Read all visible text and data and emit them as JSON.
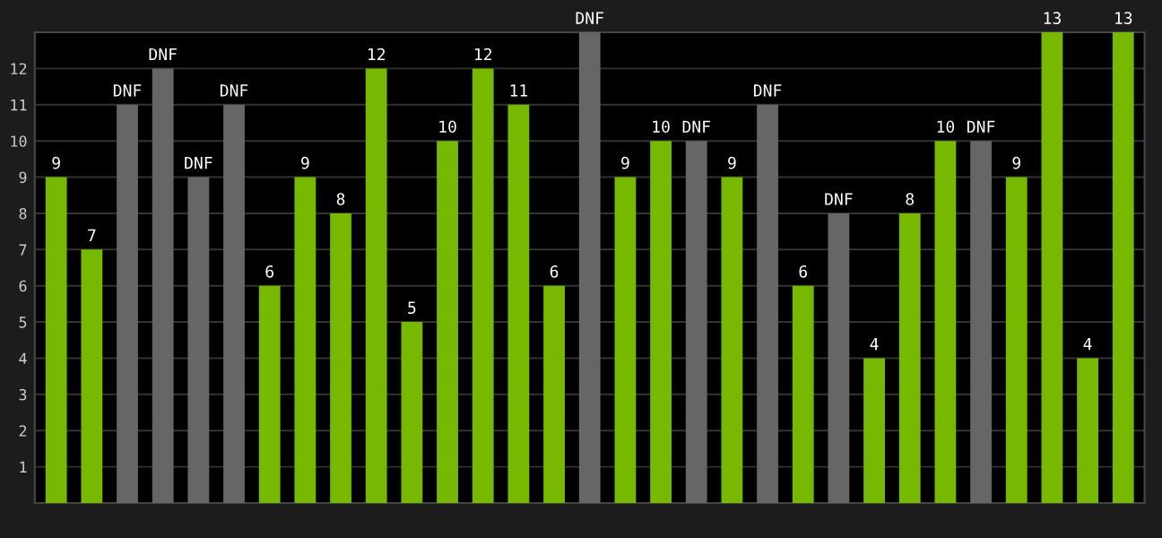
{
  "chart_data": {
    "type": "bar",
    "categories": [
      null,
      null,
      null,
      null,
      null,
      null,
      null,
      null,
      null,
      null,
      null,
      null,
      null,
      null,
      null,
      null,
      null,
      null,
      null,
      null,
      null,
      null,
      null,
      null,
      null,
      null,
      null,
      null,
      null,
      null,
      null
    ],
    "values": [
      9,
      7,
      11,
      12,
      9,
      11,
      6,
      9,
      8,
      12,
      5,
      10,
      12,
      11,
      6,
      13,
      9,
      10,
      10,
      9,
      11,
      6,
      8,
      4,
      8,
      10,
      10,
      9,
      13,
      4,
      13
    ],
    "value_labels": [
      "9",
      "7",
      "DNF",
      "DNF",
      "DNF",
      "DNF",
      "6",
      "9",
      "8",
      "12",
      "5",
      "10",
      "12",
      "11",
      "6",
      "DNF",
      "9",
      "10",
      "DNF",
      "9",
      "DNF",
      "6",
      "DNF",
      "4",
      "8",
      "10",
      "DNF",
      "9",
      "13",
      "4",
      "13"
    ],
    "colors": [
      "#76b900",
      "#76b900",
      "#666666",
      "#666666",
      "#666666",
      "#666666",
      "#76b900",
      "#76b900",
      "#76b900",
      "#76b900",
      "#76b900",
      "#76b900",
      "#76b900",
      "#76b900",
      "#76b900",
      "#666666",
      "#76b900",
      "#76b900",
      "#666666",
      "#76b900",
      "#666666",
      "#76b900",
      "#666666",
      "#76b900",
      "#76b900",
      "#76b900",
      "#666666",
      "#76b900",
      "#76b900",
      "#76b900",
      "#76b900"
    ],
    "ylim": [
      0,
      13
    ],
    "yticks": [
      1,
      2,
      3,
      4,
      5,
      6,
      7,
      8,
      9,
      10,
      11,
      12
    ],
    "grid": "y",
    "tick_labels": "y"
  }
}
